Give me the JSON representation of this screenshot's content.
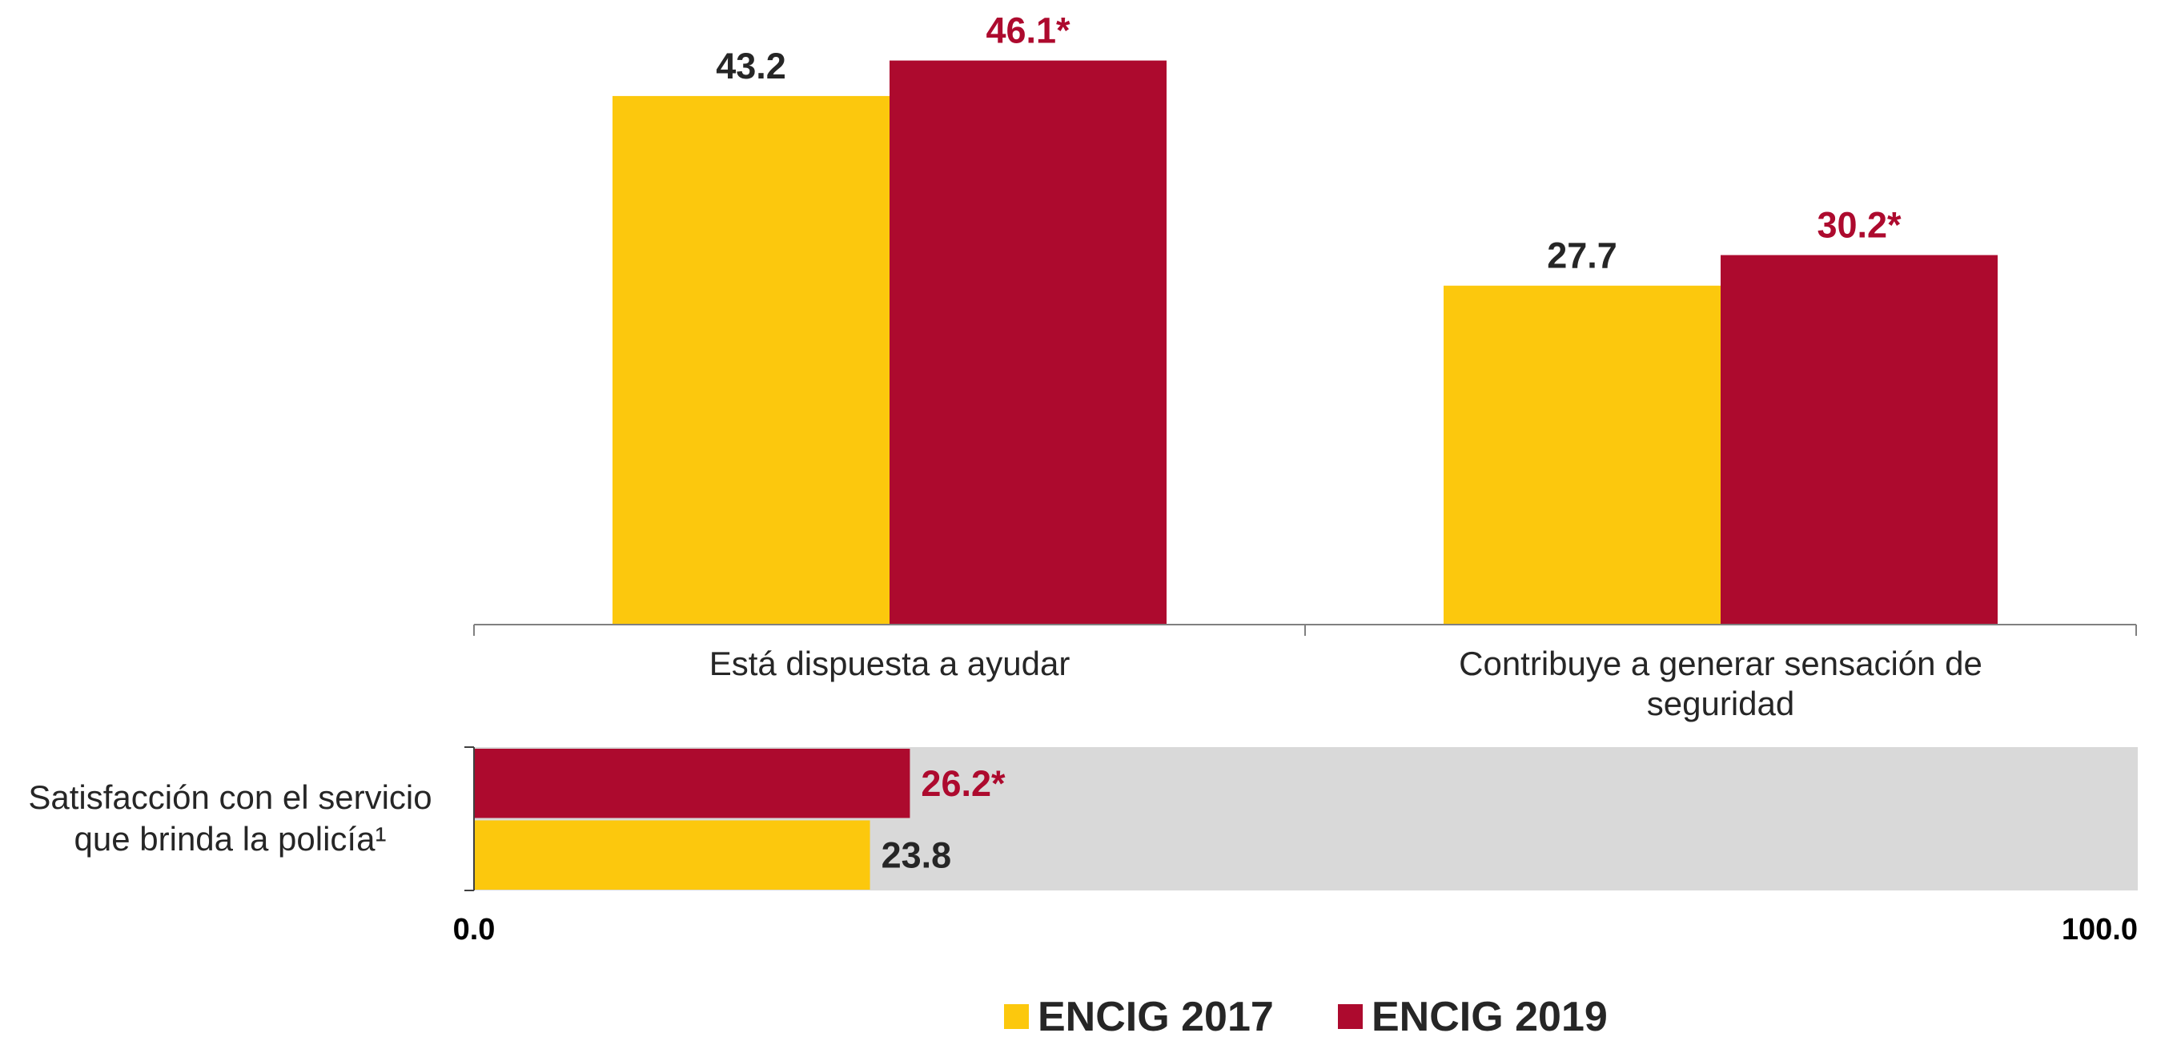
{
  "chart_data": [
    {
      "type": "bar",
      "categories": [
        "Está dispuesta a ayudar",
        "Contribuye a generar sensación de seguridad"
      ],
      "series": [
        {
          "name": "ENCIG 2017",
          "color": "#fcc80d",
          "label_color": "#262626",
          "values": [
            43.2,
            27.7
          ]
        },
        {
          "name": "ENCIG 2019",
          "color": "#ad0a2e",
          "label_color": "#ad0a2e",
          "values": [
            46.1,
            30.2
          ],
          "value_labels": [
            "46.1*",
            "30.2*"
          ]
        }
      ],
      "ylim": [
        0,
        50
      ],
      "legend": "bottom"
    },
    {
      "type": "hbar",
      "categories": [
        "Satisfacción con el servicio que brinda la policía¹"
      ],
      "series": [
        {
          "color": "#fcc80d",
          "label_color": "#262626",
          "values": [
            23.8
          ]
        },
        {
          "color": "#ad0a2e",
          "label_color": "#ad0a2e",
          "values": [
            26.2
          ],
          "value_labels": [
            "26.2*"
          ]
        }
      ],
      "xlim": [
        0,
        100
      ],
      "xticks": [
        {
          "value": 0,
          "label": "0.0"
        },
        {
          "value": 100,
          "label": "100.0"
        }
      ],
      "background": "#d9d9d9"
    }
  ]
}
